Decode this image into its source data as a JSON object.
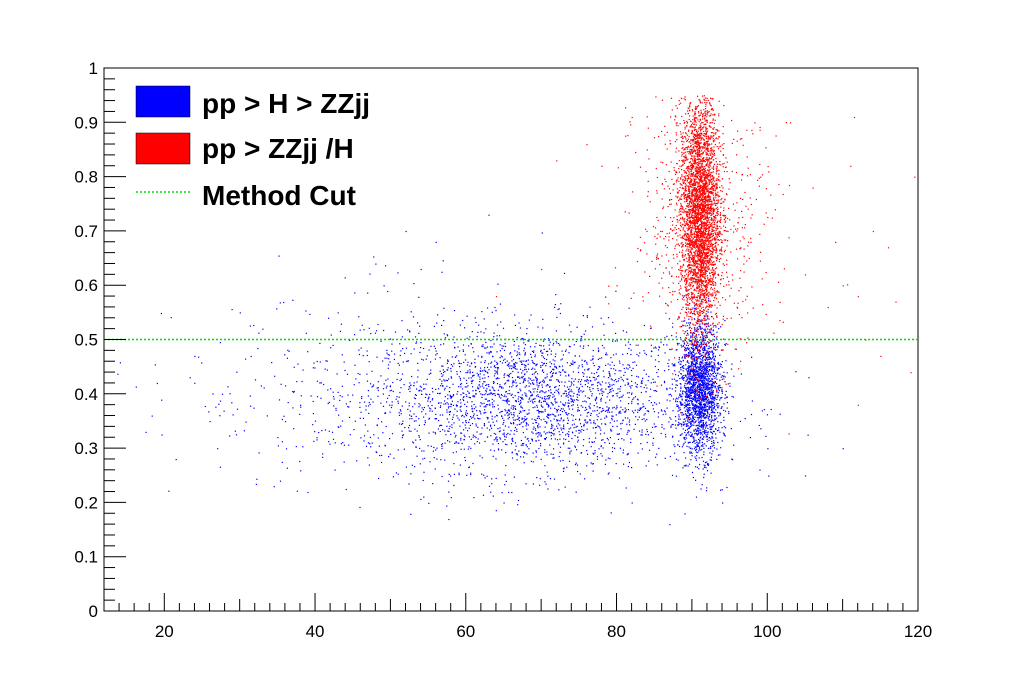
{
  "chart_data": {
    "type": "scatter",
    "title": "",
    "xlabel": "",
    "ylabel": "",
    "xlim": [
      12,
      120
    ],
    "ylim": [
      0,
      1
    ],
    "x_ticks": [
      20,
      40,
      60,
      80,
      100,
      120
    ],
    "y_ticks": [
      0,
      0.1,
      0.2,
      0.3,
      0.4,
      0.5,
      0.6,
      0.7,
      0.8,
      0.9,
      1
    ],
    "x_tick_labels": [
      "20",
      "40",
      "60",
      "80",
      "100",
      "120"
    ],
    "y_tick_labels": [
      "0",
      "0.1",
      "0.2",
      "0.3",
      "0.4",
      "0.5",
      "0.6",
      "0.7",
      "0.8",
      "0.9",
      "1"
    ],
    "grid": false,
    "legend_position": "top-left",
    "series": [
      {
        "name": "pp > H > ZZjj",
        "color": "#0000ff",
        "marker": "dot",
        "clusters": [
          {
            "x_center": 69,
            "x_spread": 11,
            "y_center": 0.39,
            "y_spread": 0.065,
            "count": 2400
          },
          {
            "x_center": 91,
            "x_spread": 1.4,
            "y_center": 0.41,
            "y_spread": 0.06,
            "count": 2000
          },
          {
            "x_center": 52,
            "x_spread": 15,
            "y_center": 0.4,
            "y_spread": 0.09,
            "count": 450
          }
        ],
        "points": [
          [
            17.5,
            0.33
          ],
          [
            19,
            0.42
          ],
          [
            21.5,
            0.28
          ],
          [
            24,
            0.47
          ],
          [
            26,
            0.35
          ],
          [
            27,
            0.3
          ],
          [
            30,
            0.55
          ],
          [
            33,
            0.52
          ],
          [
            34.5,
            0.23
          ],
          [
            36,
            0.35
          ],
          [
            38,
            0.38
          ],
          [
            43,
            0.55
          ],
          [
            46,
            0.32
          ],
          [
            48,
            0.64
          ],
          [
            52,
            0.7
          ],
          [
            54,
            0.63
          ],
          [
            56,
            0.68
          ],
          [
            58,
            0.21
          ],
          [
            61,
            0.21
          ],
          [
            63,
            0.73
          ],
          [
            65,
            0.2
          ],
          [
            82,
            0.2
          ],
          [
            87,
            0.16
          ],
          [
            89,
            0.18
          ],
          [
            94,
            0.2
          ],
          [
            105,
            0.25
          ],
          [
            110,
            0.3
          ],
          [
            100,
            0.3
          ]
        ]
      },
      {
        "name": "pp > ZZjj /H",
        "color": "#ff0000",
        "marker": "dot",
        "clusters": [
          {
            "x_center": 91,
            "x_spread": 1.3,
            "y_center": 0.73,
            "y_spread": 0.11,
            "count": 3600
          },
          {
            "x_center": 91.3,
            "x_spread": 4.5,
            "y_center": 0.72,
            "y_spread": 0.13,
            "count": 650
          }
        ],
        "points": [
          [
            98,
            0.88
          ],
          [
            101,
            0.74
          ],
          [
            103,
            0.9
          ],
          [
            105,
            0.62
          ],
          [
            106,
            0.78
          ],
          [
            108,
            0.56
          ],
          [
            109,
            0.68
          ],
          [
            110,
            0.6
          ],
          [
            111,
            0.82
          ],
          [
            111.5,
            0.91
          ],
          [
            112,
            0.58
          ],
          [
            113,
            0.5
          ],
          [
            114,
            0.7
          ],
          [
            116,
            0.67
          ],
          [
            117,
            0.57
          ],
          [
            119,
            0.44
          ],
          [
            119.5,
            0.8
          ],
          [
            112,
            0.38
          ],
          [
            115,
            0.47
          ],
          [
            84,
            0.85
          ],
          [
            86,
            0.7
          ],
          [
            82,
            0.91
          ],
          [
            80,
            0.6
          ],
          [
            78,
            0.82
          ],
          [
            76,
            0.86
          ],
          [
            72,
            0.83
          ],
          [
            70,
            0.63
          ],
          [
            64,
            0.58
          ]
        ]
      }
    ],
    "reference_lines": [
      {
        "name": "Method Cut",
        "orientation": "horizontal",
        "y": 0.5,
        "color": "#00dd00",
        "style": "dotted"
      }
    ]
  }
}
